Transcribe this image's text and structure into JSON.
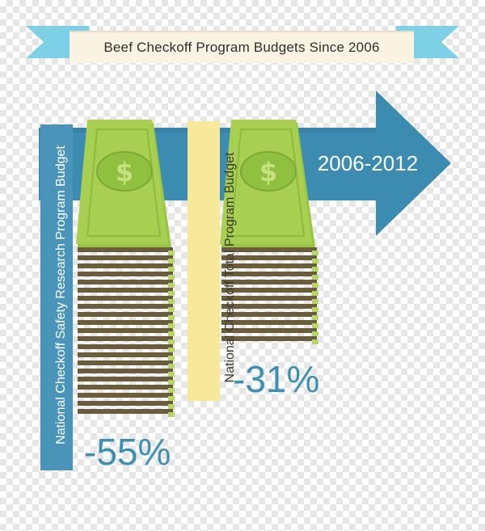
{
  "infographic": {
    "title": "Beef Checkoff Program Budgets Since 2006",
    "period": "2006-2012",
    "budgets": [
      {
        "label": "National Checkoff Safety Research Program Budget",
        "change": "-55%"
      },
      {
        "label": "National Checkoff Total Program Budget",
        "change": "-31%"
      }
    ],
    "colors": {
      "arrow_blue": "#3c8bb0",
      "banner_ribbon": "#7ed0e6",
      "banner_center": "#fbf3e2",
      "money_green": "#a8cf52",
      "money_dark": "#6b5d3c",
      "label_yellow": "#f8e89a",
      "percent_text": "#3d8fb3"
    },
    "icons": [
      "dollar-sign-icon"
    ]
  }
}
